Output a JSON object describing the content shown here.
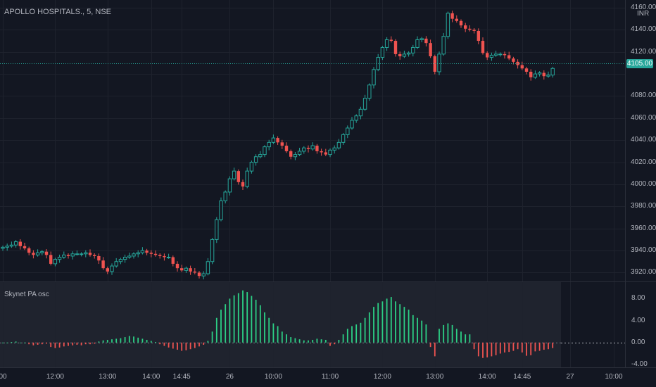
{
  "header": {
    "symbol": "APOLLO HOSPITALS., 5, NSE"
  },
  "price_axis": {
    "currency": "INR",
    "ticks": [
      "4160.00",
      "4140.00",
      "4120.00",
      "4100.00",
      "4080.00",
      "4060.00",
      "4040.00",
      "4020.00",
      "4000.00",
      "3980.00",
      "3960.00",
      "3940.00",
      "3920.00"
    ],
    "last_price": "4105.00"
  },
  "osc_axis": {
    "ticks": [
      "8.00",
      "4.00",
      "0.00",
      "-4.00"
    ]
  },
  "osc": {
    "name": "Skynet PA osc"
  },
  "time_axis": {
    "ticks": [
      "00",
      "12:00",
      "13:00",
      "14:00",
      "14:45",
      "26",
      "10:00",
      "11:00",
      "12:00",
      "13:00",
      "14:00",
      "14:45",
      "27",
      "10:00"
    ]
  },
  "colors": {
    "up": "#26a69a",
    "down": "#ef5350",
    "bg": "#131722",
    "osc_up": "#2ccf85",
    "osc_down": "#ef5350"
  },
  "chart_data": {
    "type": "candlestick",
    "symbol": "APOLLO HOSPITALS.",
    "interval": "5",
    "exchange": "NSE",
    "last_price": 4105.0,
    "ylim": [
      3912,
      4167
    ],
    "closes": [
      3943,
      3944,
      3945,
      3948,
      3944,
      3942,
      3938,
      3936,
      3938,
      3939,
      3936,
      3928,
      3932,
      3934,
      3936,
      3935,
      3937,
      3937,
      3937,
      3938,
      3936,
      3935,
      3931,
      3924,
      3921,
      3926,
      3930,
      3932,
      3934,
      3935,
      3937,
      3938,
      3940,
      3938,
      3937,
      3936,
      3935,
      3934,
      3934,
      3928,
      3924,
      3922,
      3924,
      3921,
      3920,
      3917,
      3919,
      3930,
      3950,
      3968,
      3985,
      3993,
      4005,
      4012,
      4002,
      3998,
      4012,
      4020,
      4025,
      4027,
      4034,
      4038,
      4042,
      4038,
      4035,
      4030,
      4025,
      4027,
      4030,
      4033,
      4032,
      4035,
      4030,
      4029,
      4027,
      4031,
      4033,
      4038,
      4045,
      4051,
      4058,
      4062,
      4068,
      4078,
      4090,
      4104,
      4115,
      4124,
      4131,
      4130,
      4118,
      4116,
      4118,
      4119,
      4124,
      4131,
      4132,
      4128,
      4116,
      4102,
      4118,
      4134,
      4155,
      4150,
      4148,
      4144,
      4141,
      4140,
      4139,
      4130,
      4119,
      4115,
      4117,
      4118,
      4118,
      4117,
      4114,
      4111,
      4108,
      4105,
      4102,
      4097,
      4100,
      4101,
      4098,
      4099,
      4105
    ],
    "oscillator": [
      0,
      0,
      0.1,
      0.2,
      0,
      0,
      -0.3,
      -0.5,
      -0.4,
      -0.3,
      -0.2,
      -0.8,
      -1.0,
      -0.9,
      -0.7,
      -0.6,
      -0.5,
      -0.4,
      -0.5,
      -0.3,
      -0.3,
      -0.2,
      0.2,
      0.4,
      0.5,
      0.6,
      0.7,
      0.8,
      1.0,
      1.2,
      1.1,
      0.9,
      0.7,
      0.5,
      0.3,
      0.1,
      -0.3,
      -0.6,
      -0.9,
      -1.1,
      -1.3,
      -1.5,
      -1.4,
      -1.2,
      -1.0,
      -0.7,
      -0.4,
      0.3,
      2.0,
      4.5,
      6.0,
      7.0,
      8.0,
      8.6,
      9.0,
      9.5,
      9.2,
      8.5,
      7.8,
      6.8,
      5.5,
      4.5,
      3.5,
      3.0,
      2.0,
      1.5,
      1.0,
      0.8,
      0.6,
      0.4,
      0.4,
      0.5,
      0.7,
      0.6,
      0.5,
      -0.6,
      -0.3,
      0.5,
      1.5,
      2.5,
      3.0,
      3.3,
      3.6,
      4.5,
      5.5,
      6.5,
      7.2,
      7.5,
      8.0,
      8.3,
      7.5,
      7.0,
      6.5,
      6.0,
      5.0,
      4.5,
      4.0,
      3.3,
      -0.8,
      -2.5,
      2.5,
      3.2,
      3.5,
      3.2,
      2.5,
      2.0,
      1.5,
      1.5,
      -1.2,
      -2.5,
      -2.8,
      -2.7,
      -2.5,
      -2.3,
      -2.0,
      -1.8,
      -1.7,
      -1.5,
      -1.2,
      -1.8,
      -2.4,
      -2.3,
      -1.6,
      -1.5,
      -1.3,
      -1.2,
      -1.0
    ],
    "osc_ylim": [
      -4.5,
      11
    ],
    "time_ticks": [
      {
        "label": "00",
        "index": 0
      },
      {
        "label": "12:00",
        "index": 12
      },
      {
        "label": "13:00",
        "index": 24
      },
      {
        "label": "14:00",
        "index": 34
      },
      {
        "label": "14:45",
        "index": 41
      },
      {
        "label": "26",
        "index": 52
      },
      {
        "label": "10:00",
        "index": 62
      },
      {
        "label": "11:00",
        "index": 75
      },
      {
        "label": "12:00",
        "index": 87
      },
      {
        "label": "13:00",
        "index": 99
      },
      {
        "label": "14:00",
        "index": 111
      },
      {
        "label": "14:45",
        "index": 119
      },
      {
        "label": "27",
        "index": 130
      },
      {
        "label": "10:00",
        "index": 140
      }
    ]
  }
}
